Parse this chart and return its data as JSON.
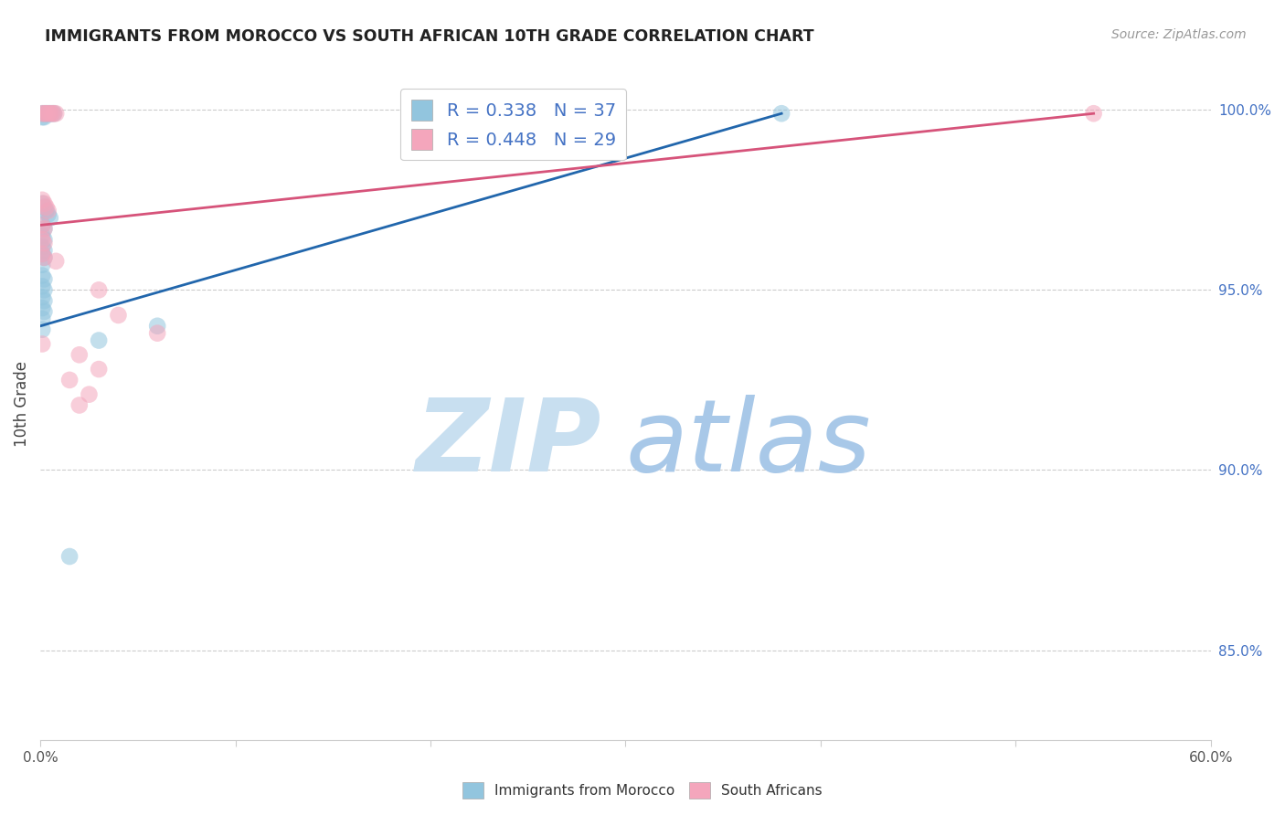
{
  "title": "IMMIGRANTS FROM MOROCCO VS SOUTH AFRICAN 10TH GRADE CORRELATION CHART",
  "source": "Source: ZipAtlas.com",
  "ylabel": "10th Grade",
  "ylabel_right_ticks": [
    "100.0%",
    "95.0%",
    "90.0%",
    "85.0%"
  ],
  "ylabel_right_vals": [
    1.0,
    0.95,
    0.9,
    0.85
  ],
  "xlim": [
    0.0,
    0.6
  ],
  "ylim": [
    0.825,
    1.012
  ],
  "legend1_label": "R = 0.338   N = 37",
  "legend2_label": "R = 0.448   N = 29",
  "blue_color": "#92c5de",
  "pink_color": "#f4a6bc",
  "line_blue": "#2166ac",
  "line_pink": "#d6537a",
  "morocco_scatter": [
    [
      0.001,
      0.999
    ],
    [
      0.002,
      0.999
    ],
    [
      0.003,
      0.999
    ],
    [
      0.004,
      0.999
    ],
    [
      0.005,
      0.999
    ],
    [
      0.006,
      0.999
    ],
    [
      0.007,
      0.999
    ],
    [
      0.001,
      0.998
    ],
    [
      0.002,
      0.998
    ],
    [
      0.001,
      0.974
    ],
    [
      0.002,
      0.973
    ],
    [
      0.003,
      0.972
    ],
    [
      0.004,
      0.971
    ],
    [
      0.005,
      0.97
    ],
    [
      0.001,
      0.968
    ],
    [
      0.002,
      0.967
    ],
    [
      0.001,
      0.965
    ],
    [
      0.002,
      0.964
    ],
    [
      0.001,
      0.962
    ],
    [
      0.002,
      0.961
    ],
    [
      0.001,
      0.96
    ],
    [
      0.002,
      0.959
    ],
    [
      0.001,
      0.957
    ],
    [
      0.001,
      0.954
    ],
    [
      0.002,
      0.953
    ],
    [
      0.001,
      0.951
    ],
    [
      0.002,
      0.95
    ],
    [
      0.001,
      0.948
    ],
    [
      0.002,
      0.947
    ],
    [
      0.001,
      0.945
    ],
    [
      0.002,
      0.944
    ],
    [
      0.001,
      0.942
    ],
    [
      0.001,
      0.939
    ],
    [
      0.03,
      0.936
    ],
    [
      0.06,
      0.94
    ],
    [
      0.38,
      0.999
    ],
    [
      0.015,
      0.876
    ]
  ],
  "sa_scatter": [
    [
      0.001,
      0.999
    ],
    [
      0.002,
      0.999
    ],
    [
      0.003,
      0.999
    ],
    [
      0.004,
      0.999
    ],
    [
      0.005,
      0.999
    ],
    [
      0.006,
      0.999
    ],
    [
      0.007,
      0.999
    ],
    [
      0.008,
      0.999
    ],
    [
      0.001,
      0.975
    ],
    [
      0.002,
      0.974
    ],
    [
      0.003,
      0.973
    ],
    [
      0.004,
      0.972
    ],
    [
      0.001,
      0.968
    ],
    [
      0.002,
      0.967
    ],
    [
      0.001,
      0.964
    ],
    [
      0.002,
      0.963
    ],
    [
      0.001,
      0.96
    ],
    [
      0.002,
      0.959
    ],
    [
      0.008,
      0.958
    ],
    [
      0.03,
      0.95
    ],
    [
      0.04,
      0.943
    ],
    [
      0.06,
      0.938
    ],
    [
      0.001,
      0.935
    ],
    [
      0.02,
      0.932
    ],
    [
      0.03,
      0.928
    ],
    [
      0.015,
      0.925
    ],
    [
      0.025,
      0.921
    ],
    [
      0.02,
      0.918
    ],
    [
      0.54,
      0.999
    ]
  ],
  "morocco_trendline_x": [
    0.0,
    0.38
  ],
  "morocco_trendline_y": [
    0.94,
    0.999
  ],
  "sa_trendline_x": [
    0.0,
    0.54
  ],
  "sa_trendline_y": [
    0.968,
    0.999
  ]
}
